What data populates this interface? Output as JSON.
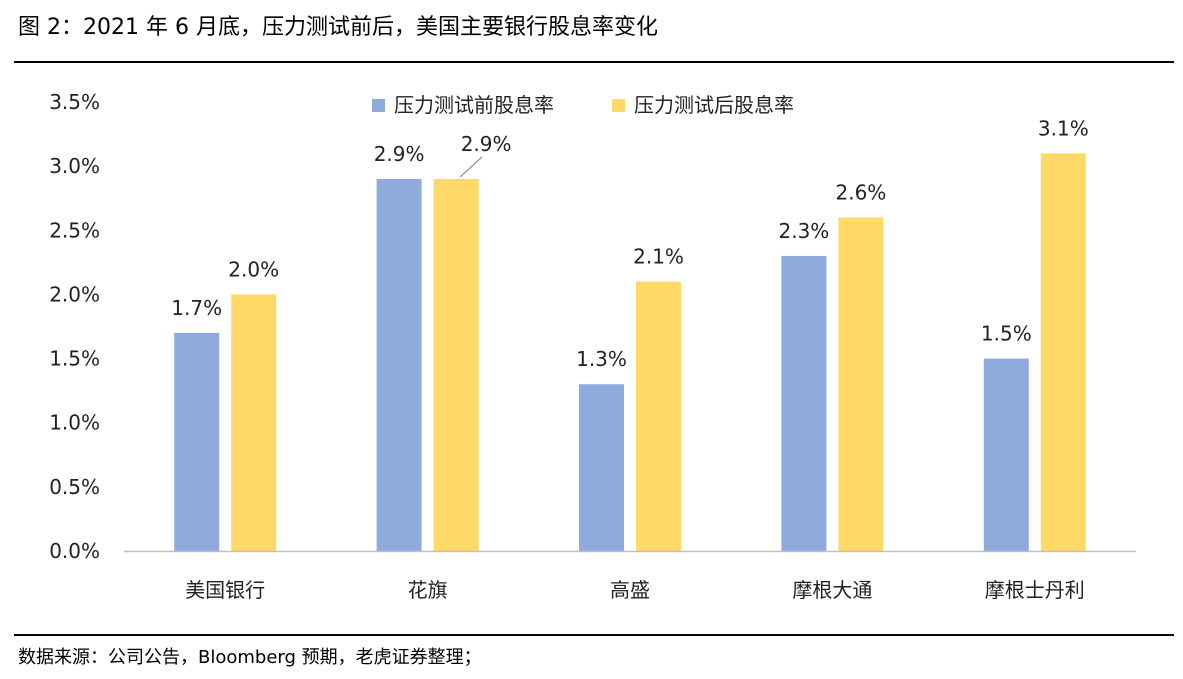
{
  "title": "图 2：2021 年 6 月底，压力测试前后，美国主要银行股息率变化",
  "source": "数据来源：公司公告，Bloomberg 预期，老虎证券整理；",
  "colors": {
    "before": "#8FAADC",
    "after": "#FFD966",
    "axis": "#BFBFBF",
    "rule": "#000000"
  },
  "chart_data": {
    "type": "bar",
    "title": "",
    "xlabel": "",
    "ylabel": "",
    "categories": [
      "美国银行",
      "花旗",
      "高盛",
      "摩根大通",
      "摩根士丹利"
    ],
    "series": [
      {
        "name": "压力测试前股息率",
        "values": [
          1.7,
          2.9,
          1.3,
          2.3,
          1.5
        ]
      },
      {
        "name": "压力测试后股息率",
        "values": [
          2.0,
          2.9,
          2.1,
          2.6,
          3.1
        ]
      }
    ],
    "ylim": [
      0,
      3.5
    ],
    "yticks": [
      "0.0%",
      "0.5%",
      "1.0%",
      "1.5%",
      "2.0%",
      "2.5%",
      "3.0%",
      "3.5%"
    ],
    "data_labels": [
      [
        "1.7%",
        "2.9%",
        "1.3%",
        "2.3%",
        "1.5%"
      ],
      [
        "2.0%",
        "2.9%",
        "2.1%",
        "2.6%",
        "3.1%"
      ]
    ],
    "grid": false,
    "legend_position": "top-center"
  }
}
